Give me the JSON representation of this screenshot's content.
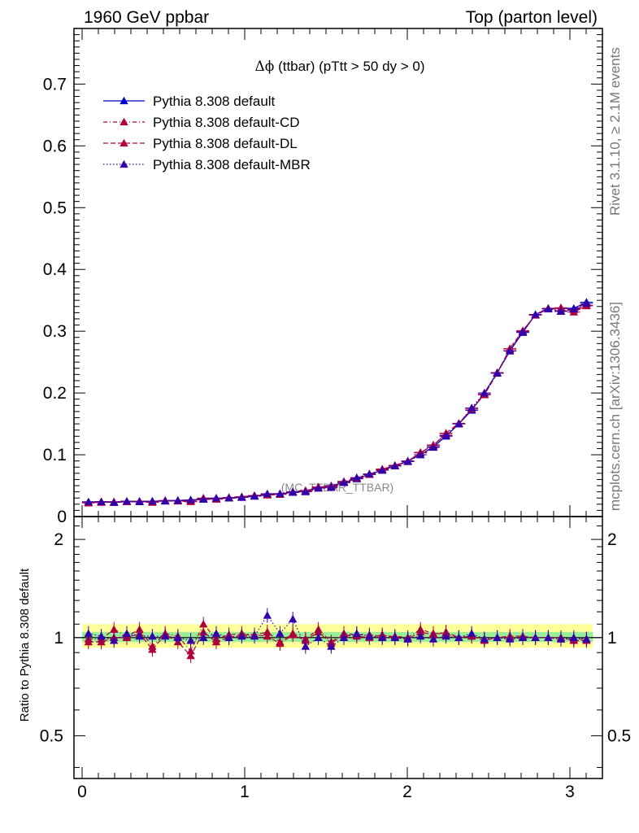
{
  "header": {
    "left": "1960 GeV ppbar",
    "right": "Top (parton level)"
  },
  "side_labels": {
    "rivet": "Rivet 3.1.10, ≥ 2.1M events",
    "source": "mcplots.cern.ch [arXiv:1306.3436]"
  },
  "watermark": "(MC_TTBAR_TTBAR)",
  "chart_data": {
    "type": "line",
    "title": "Δϕ (ttbar) (pTtt > 50 dy > 0)",
    "title_symbol": "Δϕ",
    "title_text": " (ttbar) (pTtt > 50 dy > 0)",
    "x": [
      0.039,
      0.118,
      0.196,
      0.275,
      0.353,
      0.432,
      0.511,
      0.589,
      0.668,
      0.746,
      0.825,
      0.903,
      0.982,
      1.06,
      1.139,
      1.217,
      1.296,
      1.374,
      1.453,
      1.532,
      1.61,
      1.689,
      1.767,
      1.846,
      1.924,
      2.003,
      2.081,
      2.16,
      2.238,
      2.317,
      2.396,
      2.474,
      2.553,
      2.631,
      2.71,
      2.788,
      2.867,
      2.945,
      3.024,
      3.102
    ],
    "xlim": [
      -0.05,
      3.2
    ],
    "xticks": [
      0,
      1,
      2,
      3
    ],
    "main": {
      "ylim": [
        0,
        0.79
      ],
      "yticks": [
        0,
        0.1,
        0.2,
        0.3,
        0.4,
        0.5,
        0.6,
        0.7
      ],
      "ytick_labels": [
        "0",
        "0.1",
        "0.2",
        "0.3",
        "0.4",
        "0.5",
        "0.6",
        "0.7"
      ],
      "series": [
        {
          "name": "Pythia 8.308 default",
          "color": "#0000cc",
          "dash": "",
          "values": [
            0.023,
            0.024,
            0.023,
            0.024,
            0.024,
            0.025,
            0.025,
            0.026,
            0.027,
            0.028,
            0.029,
            0.03,
            0.031,
            0.033,
            0.035,
            0.037,
            0.039,
            0.042,
            0.046,
            0.05,
            0.055,
            0.061,
            0.068,
            0.075,
            0.082,
            0.09,
            0.1,
            0.113,
            0.13,
            0.15,
            0.172,
            0.2,
            0.233,
            0.268,
            0.298,
            0.327,
            0.337,
            0.337,
            0.337,
            0.347
          ]
        },
        {
          "name": "Pythia 8.308 default-CD",
          "color": "#b0003c",
          "dash": "5,3,1,3",
          "values": [
            0.023,
            0.024,
            0.024,
            0.024,
            0.025,
            0.024,
            0.026,
            0.026,
            0.025,
            0.03,
            0.029,
            0.031,
            0.032,
            0.034,
            0.036,
            0.036,
            0.04,
            0.042,
            0.048,
            0.049,
            0.057,
            0.062,
            0.069,
            0.076,
            0.083,
            0.09,
            0.103,
            0.116,
            0.133,
            0.15,
            0.174,
            0.198,
            0.233,
            0.27,
            0.3,
            0.327,
            0.337,
            0.333,
            0.335,
            0.342
          ]
        },
        {
          "name": "Pythia 8.308 default-DL",
          "color": "#b0003c",
          "dash": "6,3",
          "values": [
            0.022,
            0.023,
            0.023,
            0.024,
            0.025,
            0.023,
            0.026,
            0.025,
            0.024,
            0.029,
            0.028,
            0.03,
            0.032,
            0.034,
            0.035,
            0.036,
            0.04,
            0.041,
            0.047,
            0.048,
            0.056,
            0.062,
            0.068,
            0.077,
            0.082,
            0.089,
            0.104,
            0.115,
            0.135,
            0.151,
            0.174,
            0.197,
            0.232,
            0.272,
            0.301,
            0.326,
            0.336,
            0.338,
            0.331,
            0.341
          ]
        },
        {
          "name": "Pythia 8.308 default-MBR",
          "color": "#3300aa",
          "dash": "1.5,2.5",
          "values": [
            0.024,
            0.024,
            0.023,
            0.025,
            0.024,
            0.025,
            0.025,
            0.026,
            0.027,
            0.028,
            0.03,
            0.03,
            0.031,
            0.033,
            0.037,
            0.037,
            0.04,
            0.04,
            0.046,
            0.047,
            0.055,
            0.063,
            0.069,
            0.075,
            0.082,
            0.089,
            0.1,
            0.112,
            0.131,
            0.15,
            0.176,
            0.2,
            0.232,
            0.268,
            0.299,
            0.327,
            0.336,
            0.332,
            0.336,
            0.345
          ]
        }
      ]
    },
    "ratio": {
      "ylabel": "Ratio to Pythia 8.308 default",
      "ylim": [
        0.37,
        2.35
      ],
      "log_scale": true,
      "yticks": [
        0.5,
        1,
        2
      ],
      "ytick_labels": [
        "0.5",
        "1",
        "2"
      ],
      "band_yellow": [
        0.93,
        1.1
      ],
      "band_green": [
        0.97,
        1.04
      ],
      "series": [
        {
          "name": "Pythia 8.308 default-CD",
          "values": [
            0.99,
            0.99,
            1.06,
            1.01,
            1.06,
            0.94,
            1.03,
            1.01,
            0.91,
            1.1,
            0.99,
            1.02,
            1.03,
            1.02,
            1.04,
            0.97,
            1.03,
            0.99,
            1.06,
            0.97,
            1.03,
            1.02,
            1.02,
            1.01,
            1.01,
            1.0,
            1.06,
            1.03,
            1.03,
            1.0,
            1.01,
            0.99,
            1.0,
            1.0,
            1.0,
            1.0,
            1.0,
            0.99,
            0.99,
            0.99
          ]
        },
        {
          "name": "Pythia 8.308 default-DL",
          "values": [
            0.97,
            0.97,
            1.0,
            1.0,
            1.03,
            0.92,
            1.02,
            0.97,
            0.88,
            1.04,
            0.97,
            1.0,
            1.02,
            1.02,
            1.01,
            0.96,
            1.02,
            0.98,
            1.04,
            0.96,
            1.02,
            1.01,
            1.0,
            1.02,
            1.0,
            0.99,
            1.04,
            1.02,
            1.04,
            1.0,
            1.01,
            0.98,
            1.0,
            1.01,
            1.01,
            1.0,
            1.0,
            1.0,
            0.98,
            0.98
          ]
        },
        {
          "name": "Pythia 8.308 default-MBR",
          "values": [
            1.03,
            1.01,
            0.98,
            1.03,
            1.01,
            1.01,
            1.01,
            1.0,
            0.98,
            1.0,
            1.03,
            1.0,
            1.01,
            1.01,
            1.17,
            1.03,
            1.14,
            0.94,
            1.0,
            0.94,
            1.0,
            1.03,
            1.01,
            1.0,
            1.0,
            0.99,
            1.01,
            0.99,
            1.01,
            1.0,
            1.03,
            0.99,
            1.0,
            0.99,
            1.0,
            1.0,
            1.0,
            0.99,
            1.0,
            0.99
          ]
        }
      ]
    },
    "legend_placement": "top-left"
  }
}
